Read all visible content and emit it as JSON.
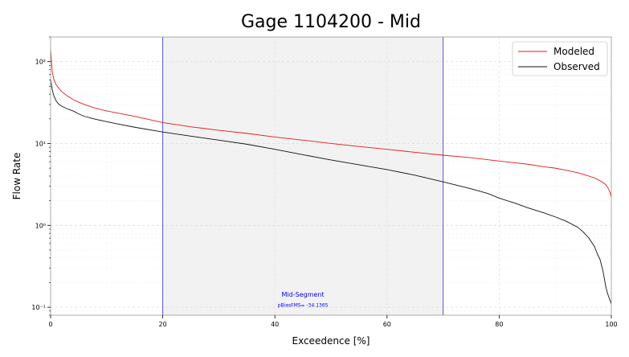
{
  "chart_data": {
    "type": "line",
    "title": "Gage 1104200 - Mid",
    "xlabel": "Exceedence [%]",
    "ylabel": "Flow Rate",
    "xlim": [
      0,
      100
    ],
    "ylim": [
      0.08,
      200
    ],
    "y_scale": "log",
    "x_ticks": [
      0,
      20,
      40,
      60,
      80,
      100
    ],
    "y_ticks": [
      {
        "value": 0.1,
        "label": "10⁻¹"
      },
      {
        "value": 1,
        "label": "10⁰"
      },
      {
        "value": 10,
        "label": "10¹"
      },
      {
        "value": 100,
        "label": "10²"
      }
    ],
    "grid": true,
    "legend_position": "top-right",
    "shaded_segment": {
      "x_start": 20,
      "x_end": 70,
      "fill": "#f2f2f2",
      "line_color": "#5555cc"
    },
    "annotations": [
      {
        "text": "Mid-Segment",
        "x": 45,
        "y": 0.135
      },
      {
        "text": "pBiasFMS= -34.1365",
        "x": 45,
        "y": 0.101
      }
    ],
    "series": [
      {
        "name": "Modeled",
        "color": "#e31a1c",
        "x": [
          0,
          0.3,
          0.6,
          1,
          1.5,
          2,
          3,
          4,
          5,
          6,
          8,
          10,
          12,
          15,
          20,
          25,
          30,
          35,
          40,
          45,
          50,
          55,
          60,
          65,
          70,
          75,
          80,
          85,
          88,
          90,
          92,
          94,
          95,
          96,
          97,
          97.5,
          98,
          98.5,
          99,
          99.3,
          99.6,
          99.8,
          100
        ],
        "values": [
          140,
          75,
          60,
          52,
          47,
          43,
          38,
          34.5,
          32,
          30,
          27,
          25,
          23.5,
          21.5,
          18,
          16,
          14.5,
          13.3,
          12,
          11,
          10,
          9.2,
          8.5,
          7.8,
          7.2,
          6.7,
          6.1,
          5.6,
          5.2,
          5.0,
          4.7,
          4.4,
          4.2,
          4.0,
          3.8,
          3.65,
          3.5,
          3.35,
          3.15,
          2.95,
          2.7,
          2.5,
          2.2
        ]
      },
      {
        "name": "Observed",
        "color": "#111111",
        "x": [
          0,
          0.3,
          0.6,
          1,
          1.5,
          2,
          3,
          4,
          5,
          6,
          8,
          10,
          12,
          15,
          20,
          25,
          30,
          35,
          40,
          45,
          50,
          55,
          60,
          65,
          70,
          75,
          78,
          80,
          83,
          85,
          88,
          90,
          92,
          94,
          95,
          96,
          97,
          97.5,
          98,
          98.5,
          99,
          99.3,
          99.6,
          99.8,
          100
        ],
        "values": [
          60,
          45,
          38,
          33,
          30,
          28.5,
          26.5,
          25,
          23,
          21.5,
          19.8,
          18.5,
          17.3,
          15.8,
          13.8,
          12.3,
          11,
          9.8,
          8.5,
          7.3,
          6.3,
          5.5,
          4.8,
          4.1,
          3.4,
          2.8,
          2.45,
          2.15,
          1.85,
          1.65,
          1.42,
          1.27,
          1.12,
          0.95,
          0.83,
          0.7,
          0.55,
          0.45,
          0.38,
          0.28,
          0.18,
          0.15,
          0.13,
          0.12,
          0.11
        ]
      }
    ]
  }
}
